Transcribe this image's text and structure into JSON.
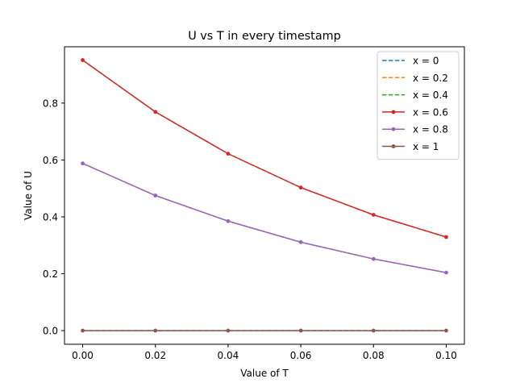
{
  "chart_data": {
    "type": "line",
    "title": "U vs T in every timestamp",
    "xlabel": "Value of T",
    "ylabel": "Value of U",
    "xlim": [
      -0.005,
      0.105
    ],
    "ylim": [
      -0.048,
      0.998
    ],
    "x_ticks": [
      0.0,
      0.02,
      0.04,
      0.06,
      0.08,
      0.1
    ],
    "x_tick_labels": [
      "0.00",
      "0.02",
      "0.04",
      "0.06",
      "0.08",
      "0.10"
    ],
    "y_ticks": [
      0.0,
      0.2,
      0.4,
      0.6,
      0.8
    ],
    "y_tick_labels": [
      "0.0",
      "0.2",
      "0.4",
      "0.6",
      "0.8"
    ],
    "grid": false,
    "legend_position": "top-right",
    "x": [
      0.0,
      0.02,
      0.04,
      0.06,
      0.08,
      0.1
    ],
    "series": [
      {
        "name": "x = 0",
        "color": "#1f77b4",
        "style": "dashed",
        "marker": false,
        "values": [
          0,
          0,
          0,
          0,
          0,
          0
        ]
      },
      {
        "name": "x = 0.2",
        "color": "#ff7f0e",
        "style": "dashed",
        "marker": false,
        "values": [
          0.588,
          0.475,
          0.385,
          0.311,
          0.252,
          0.204
        ]
      },
      {
        "name": "x = 0.4",
        "color": "#2ca02c",
        "style": "dashed",
        "marker": false,
        "values": [
          0.951,
          0.769,
          0.622,
          0.503,
          0.407,
          0.329
        ]
      },
      {
        "name": "x = 0.6",
        "color": "#d62728",
        "style": "solid",
        "marker": true,
        "values": [
          0.951,
          0.769,
          0.622,
          0.503,
          0.407,
          0.329
        ]
      },
      {
        "name": "x = 0.8",
        "color": "#9467bd",
        "style": "solid",
        "marker": true,
        "values": [
          0.588,
          0.475,
          0.385,
          0.311,
          0.252,
          0.204
        ]
      },
      {
        "name": "x = 1",
        "color": "#8c564b",
        "style": "solid",
        "marker": true,
        "values": [
          0,
          0,
          0,
          0,
          0,
          0
        ]
      }
    ]
  }
}
